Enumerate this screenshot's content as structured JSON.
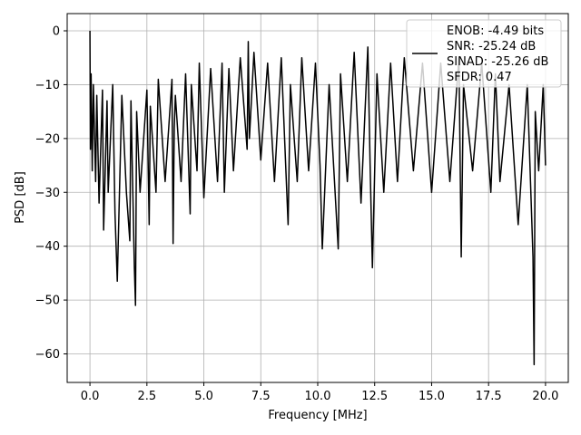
{
  "chart_data": {
    "type": "line",
    "xlabel": "Frequency [MHz]",
    "ylabel": "PSD [dB]",
    "xlim": [
      -1.0,
      21.0
    ],
    "ylim": [
      -65.3,
      3.2
    ],
    "xticks": [
      0.0,
      2.5,
      5.0,
      7.5,
      10.0,
      12.5,
      15.0,
      17.5,
      20.0
    ],
    "xtick_labels": [
      "0.0",
      "2.5",
      "5.0",
      "7.5",
      "10.0",
      "12.5",
      "15.0",
      "17.5",
      "20.0"
    ],
    "yticks": [
      0,
      -10,
      -20,
      -30,
      -40,
      -50,
      -60
    ],
    "ytick_labels": [
      "0",
      "−10",
      "−20",
      "−30",
      "−40",
      "−50",
      "−60"
    ],
    "grid": true,
    "legend_position": "top-right",
    "series": [
      {
        "color": "#000000",
        "x": [
          0.0,
          0.02,
          0.05,
          0.1,
          0.15,
          0.25,
          0.3,
          0.4,
          0.55,
          0.6,
          0.75,
          0.8,
          1.0,
          1.1,
          1.2,
          1.4,
          1.6,
          1.75,
          1.8,
          1.95,
          2.0,
          2.05,
          2.2,
          2.5,
          2.6,
          2.65,
          2.9,
          3.0,
          3.3,
          3.6,
          3.65,
          3.7,
          3.75,
          4.0,
          4.2,
          4.4,
          4.45,
          4.7,
          4.8,
          5.0,
          5.3,
          5.6,
          5.8,
          5.9,
          6.1,
          6.3,
          6.6,
          6.9,
          6.95,
          7.0,
          7.2,
          7.5,
          7.8,
          8.1,
          8.4,
          8.7,
          8.8,
          9.1,
          9.3,
          9.6,
          9.9,
          10.1,
          10.2,
          10.5,
          10.9,
          11.0,
          11.3,
          11.6,
          11.9,
          12.2,
          12.3,
          12.4,
          12.6,
          12.9,
          13.2,
          13.5,
          13.8,
          14.2,
          14.6,
          15.0,
          15.4,
          15.8,
          16.2,
          16.3,
          16.4,
          16.8,
          17.2,
          17.6,
          17.8,
          18.0,
          18.4,
          18.8,
          19.2,
          19.45,
          19.5,
          19.55,
          19.7,
          19.9,
          20.0
        ],
        "y": [
          0.0,
          -22.0,
          -8.0,
          -26.0,
          -10.0,
          -28.0,
          -12.0,
          -32.0,
          -11.0,
          -37.0,
          -13.0,
          -30.0,
          -10.0,
          -34.0,
          -46.5,
          -12.0,
          -30.0,
          -39.0,
          -13.0,
          -44.0,
          -51.0,
          -15.0,
          -30.0,
          -11.0,
          -36.0,
          -14.0,
          -30.0,
          -9.0,
          -28.0,
          -9.0,
          -39.5,
          -18.0,
          -12.0,
          -28.0,
          -8.0,
          -34.0,
          -10.0,
          -26.0,
          -6.0,
          -31.0,
          -7.0,
          -28.0,
          -6.0,
          -30.0,
          -7.0,
          -26.0,
          -5.0,
          -22.0,
          -2.0,
          -20.0,
          -4.0,
          -24.0,
          -6.0,
          -28.0,
          -5.0,
          -36.0,
          -10.0,
          -28.0,
          -5.0,
          -26.0,
          -6.0,
          -25.0,
          -40.5,
          -10.0,
          -40.5,
          -8.0,
          -28.0,
          -4.0,
          -32.0,
          -3.0,
          -25.0,
          -44.0,
          -8.0,
          -30.0,
          -6.0,
          -28.0,
          -5.0,
          -26.0,
          -6.0,
          -30.0,
          -6.0,
          -28.0,
          -5.0,
          -42.0,
          -10.0,
          -26.0,
          -6.0,
          -30.0,
          -8.0,
          -28.0,
          -10.0,
          -36.0,
          -10.0,
          -42.0,
          -62.0,
          -15.0,
          -26.0,
          -10.0,
          -25.0
        ]
      }
    ],
    "legend": {
      "entries": [
        "ENOB: -4.49 bits",
        "SNR: -25.24 dB",
        "SINAD: -25.26 dB",
        "SFDR: 0.47"
      ]
    }
  }
}
